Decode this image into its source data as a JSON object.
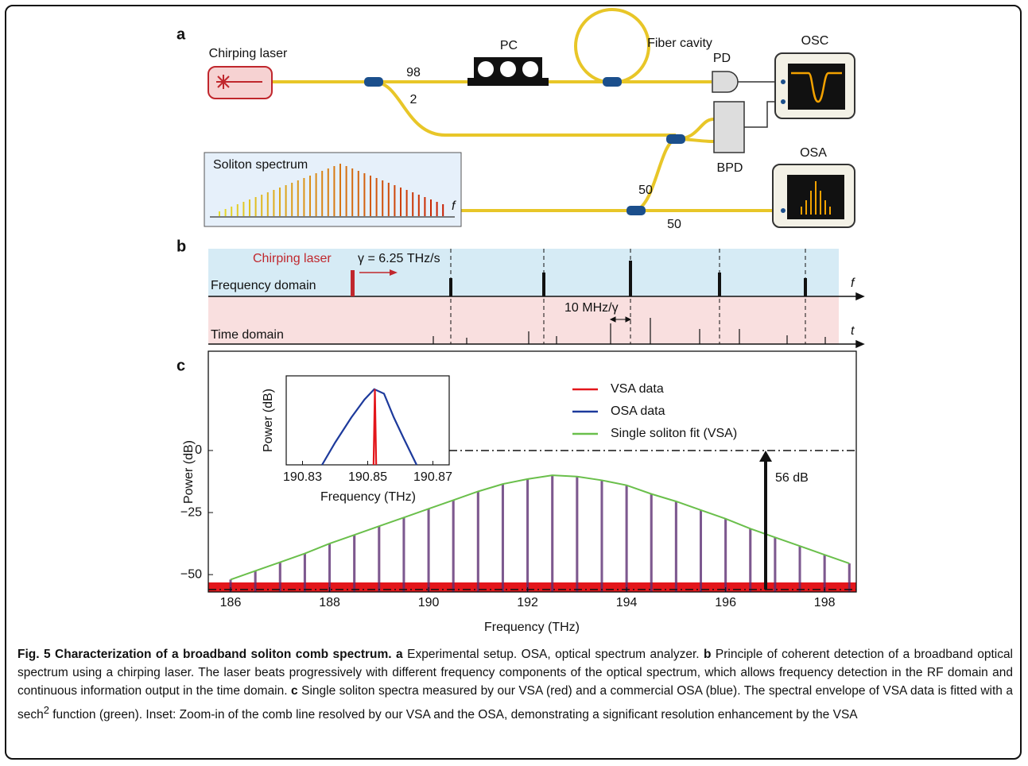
{
  "panel_a": {
    "label": "a",
    "chirping_laser": "Chirping laser",
    "pc": "PC",
    "fiber_cavity": "Fiber cavity",
    "osc": "OSC",
    "pd": "PD",
    "split_98": "98",
    "split_2": "2",
    "bpd": "BPD",
    "osa": "OSA",
    "soliton_spectrum": "Soliton spectrum",
    "f_axis": "f",
    "split_50a": "50",
    "split_50b": "50"
  },
  "panel_b": {
    "label": "b",
    "chirping_laser": "Chirping laser",
    "rate": "γ = 6.25 THz/s",
    "frequency_domain": "Frequency domain",
    "time_domain": "Time domain",
    "spacing": "10 MHz/γ",
    "f_axis": "f",
    "t_axis": "t"
  },
  "chart_data": {
    "type": "line",
    "label": "c",
    "x_label": "Frequency (THz)",
    "y_label": "Power (dB)",
    "xlim": [
      185.55,
      198.64
    ],
    "ylim": [
      -57,
      40
    ],
    "xticks": [
      186,
      188,
      190,
      192,
      194,
      196,
      198
    ],
    "yticks": [
      {
        "value": -50,
        "label": "−50"
      },
      {
        "value": -25,
        "label": "−25"
      },
      0
    ],
    "x": [
      186,
      186.5,
      187,
      187.5,
      188,
      188.5,
      189,
      189.5,
      190,
      190.5,
      191,
      191.5,
      192,
      192.5,
      193,
      193.5,
      194,
      194.5,
      195,
      195.5,
      196,
      196.5,
      197,
      197.5,
      198,
      198.5
    ],
    "series": [
      {
        "name": "VSA data",
        "color": "#e3161b",
        "style": "stem",
        "values": [
          -52,
          -48.5,
          -45,
          -41.5,
          -37.5,
          -34,
          -30.5,
          -27,
          -23.5,
          -20,
          -16.5,
          -13.5,
          -11.5,
          -10,
          -10.5,
          -12,
          -14,
          -17.5,
          -20.5,
          -24,
          -27.5,
          -31.5,
          -35,
          -38.5,
          -42,
          -45.5
        ]
      },
      {
        "name": "OSA data",
        "color": "#1d3a9c",
        "style": "stem",
        "values": [
          -52,
          -48.5,
          -45,
          -41.5,
          -37.5,
          -34,
          -30.5,
          -27,
          -23.5,
          -20,
          -16.5,
          -13.5,
          -11.5,
          -10,
          -10.5,
          -12,
          -14,
          -17.5,
          -20.5,
          -24,
          -27.5,
          -31.5,
          -35,
          -38.5,
          -42,
          -45.5
        ]
      },
      {
        "name": "Single soliton fit (VSA)",
        "color": "#6abf4b",
        "style": "line",
        "values": [
          -52,
          -48.5,
          -45,
          -41.5,
          -37.5,
          -34,
          -30.5,
          -27,
          -23.5,
          -20,
          -16.5,
          -13.5,
          -11.5,
          -10,
          -10.5,
          -12,
          -14,
          -17.5,
          -20.5,
          -24,
          -27.5,
          -31.5,
          -35,
          -38.5,
          -42,
          -45.5
        ]
      }
    ],
    "hlines": [
      0,
      -56
    ],
    "annotation": "56 dB",
    "inset": {
      "x_label": "Frequency (THz)",
      "y_label": "Power (dB)",
      "xlim": [
        190.825,
        190.875
      ],
      "ylim": [
        -60,
        0
      ],
      "xticks": [
        190.83,
        190.85,
        190.87
      ],
      "series": [
        {
          "color": "#1d3a9c",
          "x": [
            190.836,
            190.84,
            190.845,
            190.849,
            190.852,
            190.855,
            190.858,
            190.861,
            190.865
          ],
          "values": [
            -60,
            -45,
            -28,
            -16,
            -9,
            -12,
            -28,
            -42,
            -60
          ]
        },
        {
          "color": "#e3161b",
          "x": [
            190.8518,
            190.8522,
            190.8526
          ],
          "values": [
            -60,
            -9,
            -60
          ]
        }
      ]
    }
  },
  "caption": {
    "title": "Fig. 5 Characterization of a broadband soliton comb spectrum.",
    "a_label": "a",
    "a_text": "Experimental setup. OSA, optical spectrum analyzer.",
    "b_label": "b",
    "b_text": "Principle of coherent detection of a broadband optical spectrum using a chirping laser. The laser beats progressively with different frequency components of the optical spectrum, which allows frequency detection in the RF domain and continuous information output in the time domain.",
    "c_label": "c",
    "c_text1": "Single soliton spectra measured by our VSA (red) and a commercial OSA (blue). The spectral envelope of VSA data is fitted with a sech",
    "c_sup": "2",
    "c_text2": "function (green). Inset: Zoom-in of the comb line resolved by our VSA and the OSA, demonstrating a significant resolution enhancement by the VSA"
  }
}
